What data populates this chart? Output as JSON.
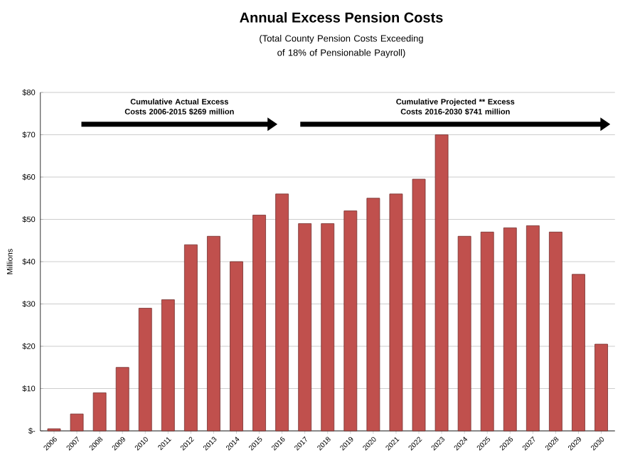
{
  "chart_data": {
    "type": "bar",
    "title": "Annual **Excess** Pension Costs",
    "subtitle": "(Total County Pension Costs Exceeding of 18% of Pensionable Payroll)",
    "ylabel": "Millions",
    "categories": [
      "2006",
      "2007",
      "2008",
      "2009",
      "2010",
      "2011",
      "2012",
      "2013",
      "2014",
      "2015",
      "2016",
      "2017",
      "2018",
      "2019",
      "2020",
      "2021",
      "2022",
      "2023",
      "2024",
      "2025",
      "2026",
      "2027",
      "2028",
      "2029",
      "2030"
    ],
    "values": [
      0.5,
      4,
      9,
      15,
      29,
      31,
      44,
      46,
      40,
      51,
      56,
      49,
      49,
      52,
      55,
      56,
      59.5,
      70,
      46,
      47,
      48,
      48.5,
      47,
      37,
      20.5
    ],
    "color": "#c0504d",
    "ylim": [
      0,
      80
    ],
    "yticks": [
      {
        "value": 0,
        "label": "$-"
      },
      {
        "value": 10,
        "label": "$10"
      },
      {
        "value": 20,
        "label": "$20"
      },
      {
        "value": 30,
        "label": "$30"
      },
      {
        "value": 40,
        "label": "$40"
      },
      {
        "value": 50,
        "label": "$50"
      },
      {
        "value": 60,
        "label": "$60"
      },
      {
        "value": 70,
        "label": "$70"
      },
      {
        "value": 80,
        "label": "$80"
      }
    ],
    "grid": "y",
    "annotations": [
      "Cumulative Actual Excess Costs 2006-2015  $269 million",
      "Cumulative Projected ** Excess Costs 2016-2030 $741 million"
    ]
  }
}
